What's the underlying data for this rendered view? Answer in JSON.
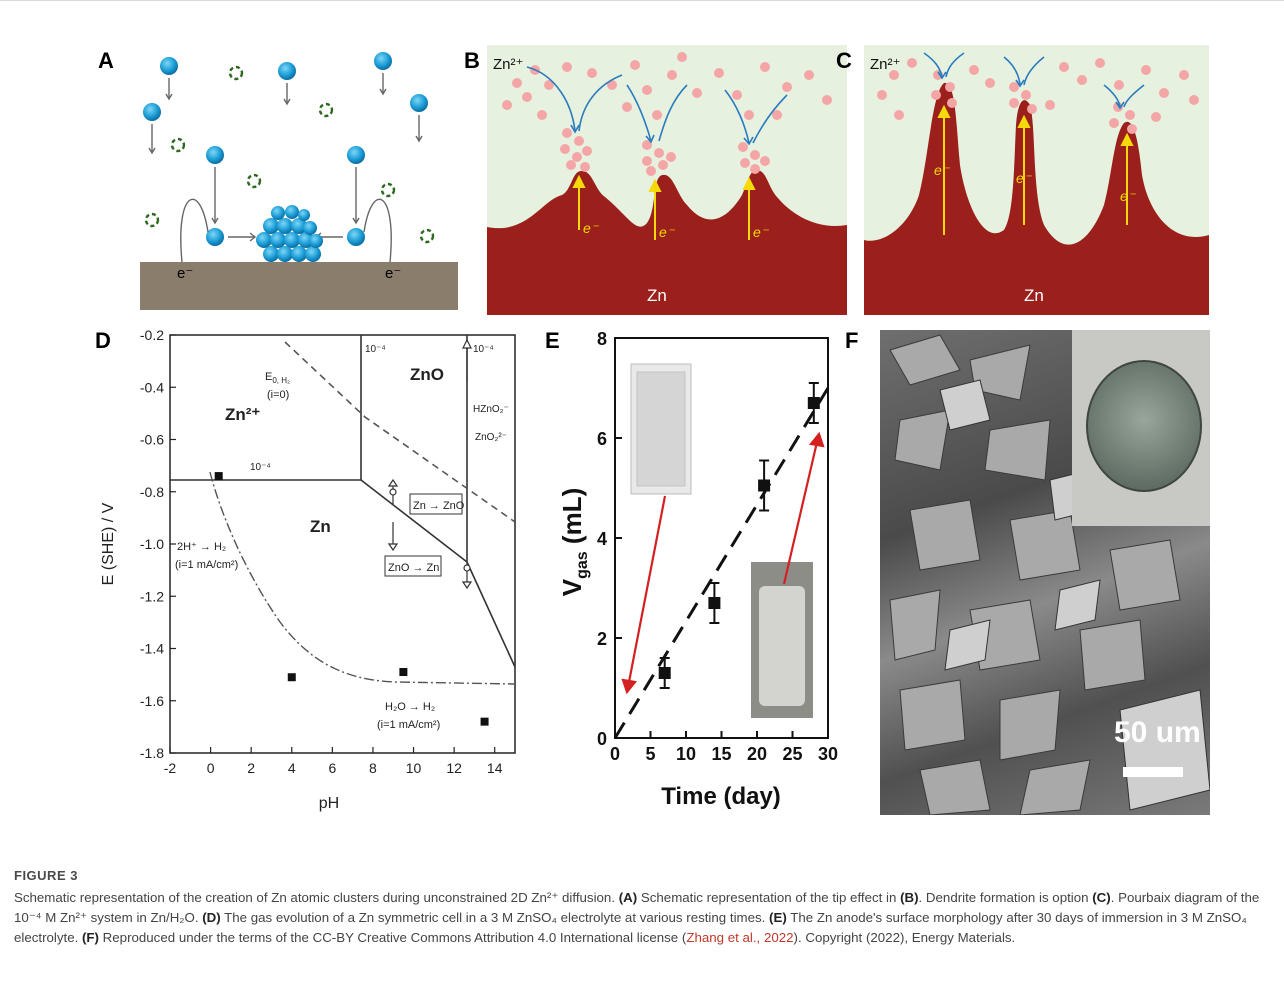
{
  "panels": {
    "a": {
      "letter": "A",
      "electron_left": "e⁻",
      "electron_right": "e⁻"
    },
    "b": {
      "letter": "B",
      "ion_label": "Zn²⁺",
      "electron": "e⁻",
      "metal_label": "Zn"
    },
    "c": {
      "letter": "C",
      "ion_label": "Zn²⁺",
      "electron": "e⁻",
      "metal_label": "Zn"
    },
    "d": {
      "letter": "D",
      "labels": {
        "zn2": "Zn²⁺",
        "zno": "ZnO",
        "zn": "Zn",
        "conc1": "10⁻⁴",
        "conc2": "10⁻⁴",
        "conc3": "10⁻⁴",
        "conc4": "10⁻⁴",
        "eh2_line1": "E",
        "eh2_sub": "0, H₂",
        "eh2_line2": "(i=0)",
        "hzno2": "HZnO₂⁻",
        "zno2": "ZnO₂²⁻",
        "zn_to_zno": "Zn → ZnO",
        "zno_to_zn": "ZnO → Zn",
        "h_evol_1": "2H⁺ → H₂",
        "h_evol_2": "(i=1 mA/cm²)",
        "h2o_1": "H₂O → H₂",
        "h2o_2": "(i=1 mA/cm²)"
      }
    },
    "e": {
      "letter": "E"
    },
    "f": {
      "letter": "F",
      "scale_text": "50 um"
    }
  },
  "chart_data": [
    {
      "type": "scatter",
      "id": "pourbaix",
      "xlabel": "pH",
      "ylabel": "E (SHE) / V",
      "xlim": [
        -2,
        15
      ],
      "ylim": [
        -1.8,
        -0.2
      ],
      "xticks": [
        -2,
        0,
        2,
        4,
        6,
        8,
        10,
        12,
        14
      ],
      "yticks": [
        -0.2,
        -0.4,
        -0.6,
        -0.8,
        -1.0,
        -1.2,
        -1.4,
        -1.6,
        -1.8
      ],
      "x": [
        0.4,
        4.0,
        9.5,
        13.5
      ],
      "y": [
        -0.74,
        -1.51,
        -1.49,
        -1.68
      ]
    },
    {
      "type": "scatter",
      "id": "gas_evolution",
      "xlabel": "Time (day)",
      "ylabel": "V",
      "ylabel_sub": "gas",
      "ylabel_unit": " (mL)",
      "xlim": [
        0,
        30
      ],
      "ylim": [
        0,
        8
      ],
      "xticks": [
        0,
        5,
        10,
        15,
        20,
        25,
        30
      ],
      "yticks": [
        0,
        2,
        4,
        6,
        8
      ],
      "x": [
        7,
        14,
        21,
        28
      ],
      "y": [
        1.3,
        2.7,
        5.05,
        6.7
      ],
      "err": [
        0.3,
        0.4,
        0.5,
        0.4
      ],
      "fit": [
        [
          0,
          0
        ],
        [
          30,
          7.0
        ]
      ]
    }
  ],
  "caption": {
    "fig_label": "FIGURE 3",
    "s1": "Schematic representation of the creation of Zn atomic clusters during unconstrained 2D Zn²⁺ diffusion. ",
    "l1": "(A)",
    "s2": " Schematic representation of the tip effect in ",
    "l2": "(B)",
    "s3": ". Dendrite formation is option ",
    "l3": "(C)",
    "s4": ". Pourbaix diagram of the 10⁻⁴ M Zn²⁺ system in Zn/H₂O. ",
    "l4": "(D)",
    "s5": " The gas evolution of a Zn symmetric cell in a 3 M ZnSO₄ electrolyte at various resting times. ",
    "l5": "(E)",
    "s6": " The Zn anode's surface morphology after 30 days of immersion in 3 M ZnSO₄ electrolyte. ",
    "l6": "(F)",
    "s7": " Reproduced under the terms of the CC-BY Creative Commons Attribution 4.0 International license (",
    "link": "Zhang et al., 2022",
    "s8": "). Copyright (2022), Energy Materials."
  }
}
